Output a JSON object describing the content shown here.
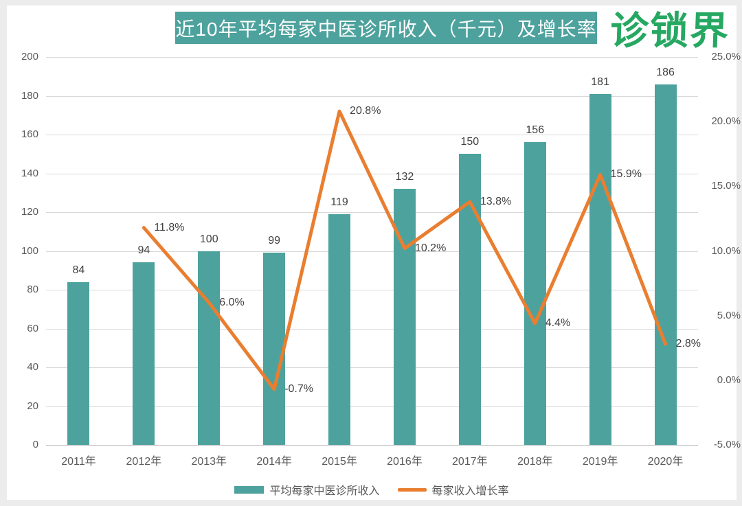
{
  "page": {
    "title": "近10年平均每家中医诊所收入（千元）及增长率",
    "logo_text": "诊锁界"
  },
  "colors": {
    "title_bg": "#4da29d",
    "bar": "#4da29d",
    "line": "#e97e30",
    "logo_green": "#26a862",
    "gridline": "#d9d9d9",
    "axis_text": "#595959",
    "data_label_text": "#404040"
  },
  "chart_data": {
    "type": "combo-bar-line",
    "title": "近10年平均每家中医诊所收入（千元）及增长率",
    "categories": [
      "2011年",
      "2012年",
      "2013年",
      "2014年",
      "2015年",
      "2016年",
      "2017年",
      "2018年",
      "2019年",
      "2020年"
    ],
    "series": [
      {
        "name": "平均每家中医诊所收入",
        "type": "bar",
        "axis": "left",
        "color": "#4da29d",
        "values": [
          84,
          94,
          100,
          99,
          119,
          132,
          150,
          156,
          181,
          186
        ],
        "data_labels": [
          "84",
          "94",
          "100",
          "99",
          "119",
          "132",
          "150",
          "156",
          "181",
          "186"
        ]
      },
      {
        "name": "每家收入增长率",
        "type": "line",
        "axis": "right",
        "color": "#e97e30",
        "values": [
          null,
          11.8,
          6.0,
          -0.7,
          20.8,
          10.2,
          13.8,
          4.4,
          15.9,
          2.8
        ],
        "data_labels": [
          "",
          "11.8%",
          "6.0%",
          "-0.7%",
          "20.8%",
          "10.2%",
          "13.8%",
          "4.4%",
          "15.9%",
          "2.8%"
        ]
      }
    ],
    "left_axis": {
      "min": 0,
      "max": 200,
      "step": 20,
      "tick_labels": [
        "0",
        "20",
        "40",
        "60",
        "80",
        "100",
        "120",
        "140",
        "160",
        "180",
        "200"
      ]
    },
    "right_axis": {
      "min": -5,
      "max": 25,
      "step": 5,
      "tick_labels": [
        "-5.0%",
        "0.0%",
        "5.0%",
        "10.0%",
        "15.0%",
        "20.0%",
        "25.0%"
      ]
    },
    "grid": true,
    "legend_position": "bottom",
    "legend": [
      {
        "label": "平均每家中医诊所收入",
        "marker": "rect",
        "color": "#4da29d"
      },
      {
        "label": "每家收入增长率",
        "marker": "line",
        "color": "#e97e30"
      }
    ]
  }
}
